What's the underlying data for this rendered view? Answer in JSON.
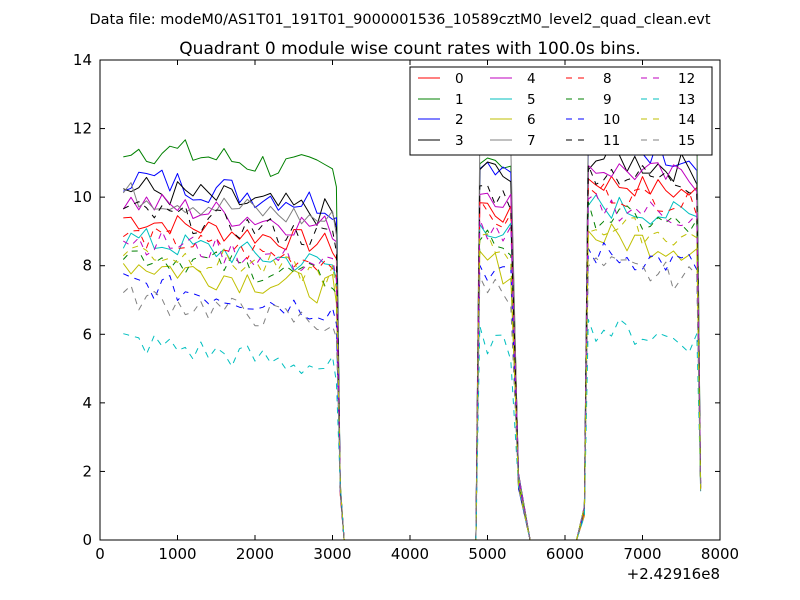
{
  "chart_data": {
    "type": "line",
    "suptitle": "Data file: modeM0/AS1T01_191T01_9000001536_10589cztM0_level2_quad_clean.evt",
    "title": "Quadrant 0 module wise count rates with 100.0s bins.",
    "xlabel": "",
    "ylabel": "",
    "x_offset_label": "+2.42916e8",
    "xlim": [
      0,
      8000
    ],
    "ylim": [
      0,
      14
    ],
    "xticks": [
      0,
      1000,
      2000,
      3000,
      4000,
      5000,
      6000,
      7000,
      8000
    ],
    "yticks": [
      0,
      2,
      4,
      6,
      8,
      10,
      12,
      14
    ],
    "legend_position": "top-right",
    "bin_width_s": 100.0,
    "x_start": 300,
    "x_step": 100,
    "segments": [
      {
        "start": 300,
        "end": 3000
      },
      {
        "start": 4900,
        "end": 5300
      },
      {
        "start": 6300,
        "end": 7700
      }
    ],
    "segment_edges": [
      {
        "x": 3100,
        "kind": "fall",
        "low": 1.3
      },
      {
        "x": 3150,
        "kind": "zero",
        "low": 0
      },
      {
        "x": 4850,
        "kind": "zero",
        "low": 0
      },
      {
        "x": 4800,
        "kind": "anchor",
        "low": 0
      },
      {
        "x": 5400,
        "kind": "fall",
        "low": 1.5
      },
      {
        "x": 5550,
        "kind": "zero",
        "low": 0
      },
      {
        "x": 6150,
        "kind": "zero",
        "low": 0
      },
      {
        "x": 6250,
        "kind": "rise",
        "low": 0.7
      },
      {
        "x": 7750,
        "kind": "fall",
        "low": 1.4
      }
    ],
    "series": [
      {
        "name": "0",
        "color": "#ff0000",
        "dash": "solid",
        "levels": [
          9.4,
          9.8,
          10.5
        ],
        "noise": 0.35
      },
      {
        "name": "1",
        "color": "#008000",
        "dash": "solid",
        "levels": [
          11.5,
          11.4,
          12.3
        ],
        "noise": 0.45
      },
      {
        "name": "2",
        "color": "#0000ff",
        "dash": "solid",
        "levels": [
          10.6,
          11.2,
          11.6
        ],
        "noise": 0.45
      },
      {
        "name": "3",
        "color": "#000000",
        "dash": "solid",
        "levels": [
          10.3,
          10.9,
          11.2
        ],
        "noise": 0.45
      },
      {
        "name": "4",
        "color": "#bf00bf",
        "dash": "solid",
        "levels": [
          9.9,
          10.3,
          10.9
        ],
        "noise": 0.4
      },
      {
        "name": "5",
        "color": "#00bfbf",
        "dash": "solid",
        "levels": [
          8.8,
          9.3,
          9.8
        ],
        "noise": 0.4
      },
      {
        "name": "6",
        "color": "#bfbf00",
        "dash": "solid",
        "levels": [
          8.1,
          8.2,
          8.9
        ],
        "noise": 0.45
      },
      {
        "name": "7",
        "color": "#808080",
        "dash": "solid",
        "levels": [
          10.1,
          11.7,
          12.2
        ],
        "noise": 0.4
      },
      {
        "name": "8",
        "color": "#ff0000",
        "dash": "dashed",
        "levels": [
          8.9,
          9.6,
          10.2
        ],
        "noise": 0.35
      },
      {
        "name": "9",
        "color": "#008000",
        "dash": "dashed",
        "levels": [
          8.4,
          8.9,
          9.5
        ],
        "noise": 0.4
      },
      {
        "name": "10",
        "color": "#0000ff",
        "dash": "dashed",
        "levels": [
          7.5,
          8.0,
          8.4
        ],
        "noise": 0.4
      },
      {
        "name": "11",
        "color": "#000000",
        "dash": "dashed",
        "levels": [
          9.6,
          10.3,
          10.8
        ],
        "noise": 0.4
      },
      {
        "name": "12",
        "color": "#bf00bf",
        "dash": "dashed",
        "levels": [
          8.8,
          9.2,
          9.8
        ],
        "noise": 0.4
      },
      {
        "name": "13",
        "color": "#00bfbf",
        "dash": "dashed",
        "levels": [
          5.8,
          5.9,
          6.2
        ],
        "noise": 0.4
      },
      {
        "name": "14",
        "color": "#bfbf00",
        "dash": "dashed",
        "levels": [
          8.5,
          8.7,
          9.2
        ],
        "noise": 0.4
      },
      {
        "name": "15",
        "color": "#808080",
        "dash": "dashed",
        "levels": [
          7.1,
          7.6,
          8.0
        ],
        "noise": 0.4
      }
    ]
  }
}
